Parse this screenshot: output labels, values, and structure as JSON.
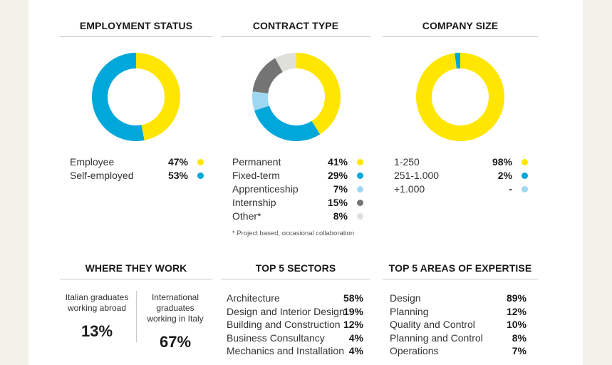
{
  "chart_data": [
    {
      "type": "pie",
      "title": "EMPLOYMENT STATUS",
      "categories": [
        "Employee",
        "Self-employed"
      ],
      "values": [
        47,
        53
      ],
      "value_labels": [
        "47%",
        "53%"
      ],
      "colors": [
        "#ffe600",
        "#00a7db"
      ]
    },
    {
      "type": "pie",
      "title": "CONTRACT TYPE",
      "categories": [
        "Permanent",
        "Fixed-term",
        "Apprenticeship",
        "Internship",
        "Other*"
      ],
      "values": [
        41,
        29,
        7,
        15,
        8
      ],
      "value_labels": [
        "41%",
        "29%",
        "7%",
        "15%",
        "8%"
      ],
      "colors": [
        "#ffe600",
        "#00a7db",
        "#9ed7f0",
        "#747474",
        "#e0e0da"
      ],
      "footnote": "* Project based, occasional collaboration"
    },
    {
      "type": "pie",
      "title": "COMPANY SIZE",
      "categories": [
        "1-250",
        "251-1.000",
        "+1.000"
      ],
      "values": [
        98,
        2,
        0
      ],
      "value_labels": [
        "98%",
        "2%",
        "-"
      ],
      "colors": [
        "#ffe600",
        "#00a7db",
        "#9ed7f0"
      ]
    },
    {
      "type": "table",
      "title": "WHERE THEY WORK",
      "categories": [
        "Italian graduates working abroad",
        "International graduates working in Italy"
      ],
      "values": [
        13,
        67
      ],
      "value_labels": [
        "13%",
        "67%"
      ]
    },
    {
      "type": "table",
      "title": "TOP 5 SECTORS",
      "categories": [
        "Architecture",
        "Design and Interior Design",
        "Building and Construction",
        "Business Consultancy",
        "Mechanics and Installation"
      ],
      "values": [
        58,
        19,
        12,
        4,
        4
      ],
      "value_labels": [
        "58%",
        "19%",
        "12%",
        "4%",
        "4%"
      ]
    },
    {
      "type": "table",
      "title": "TOP 5 AREAS OF EXPERTISE",
      "categories": [
        "Design",
        "Planning",
        "Quality and Control",
        "Planning and Control",
        "Operations"
      ],
      "values": [
        89,
        12,
        10,
        8,
        7
      ],
      "value_labels": [
        "89%",
        "12%",
        "10%",
        "8%",
        "7%"
      ]
    }
  ],
  "where_they_work": {
    "left_label_1": "Italian graduates",
    "left_label_2": "working abroad",
    "left_value": "13%",
    "right_label_1": "International graduates",
    "right_label_2": "working in Italy",
    "right_value": "67%"
  }
}
